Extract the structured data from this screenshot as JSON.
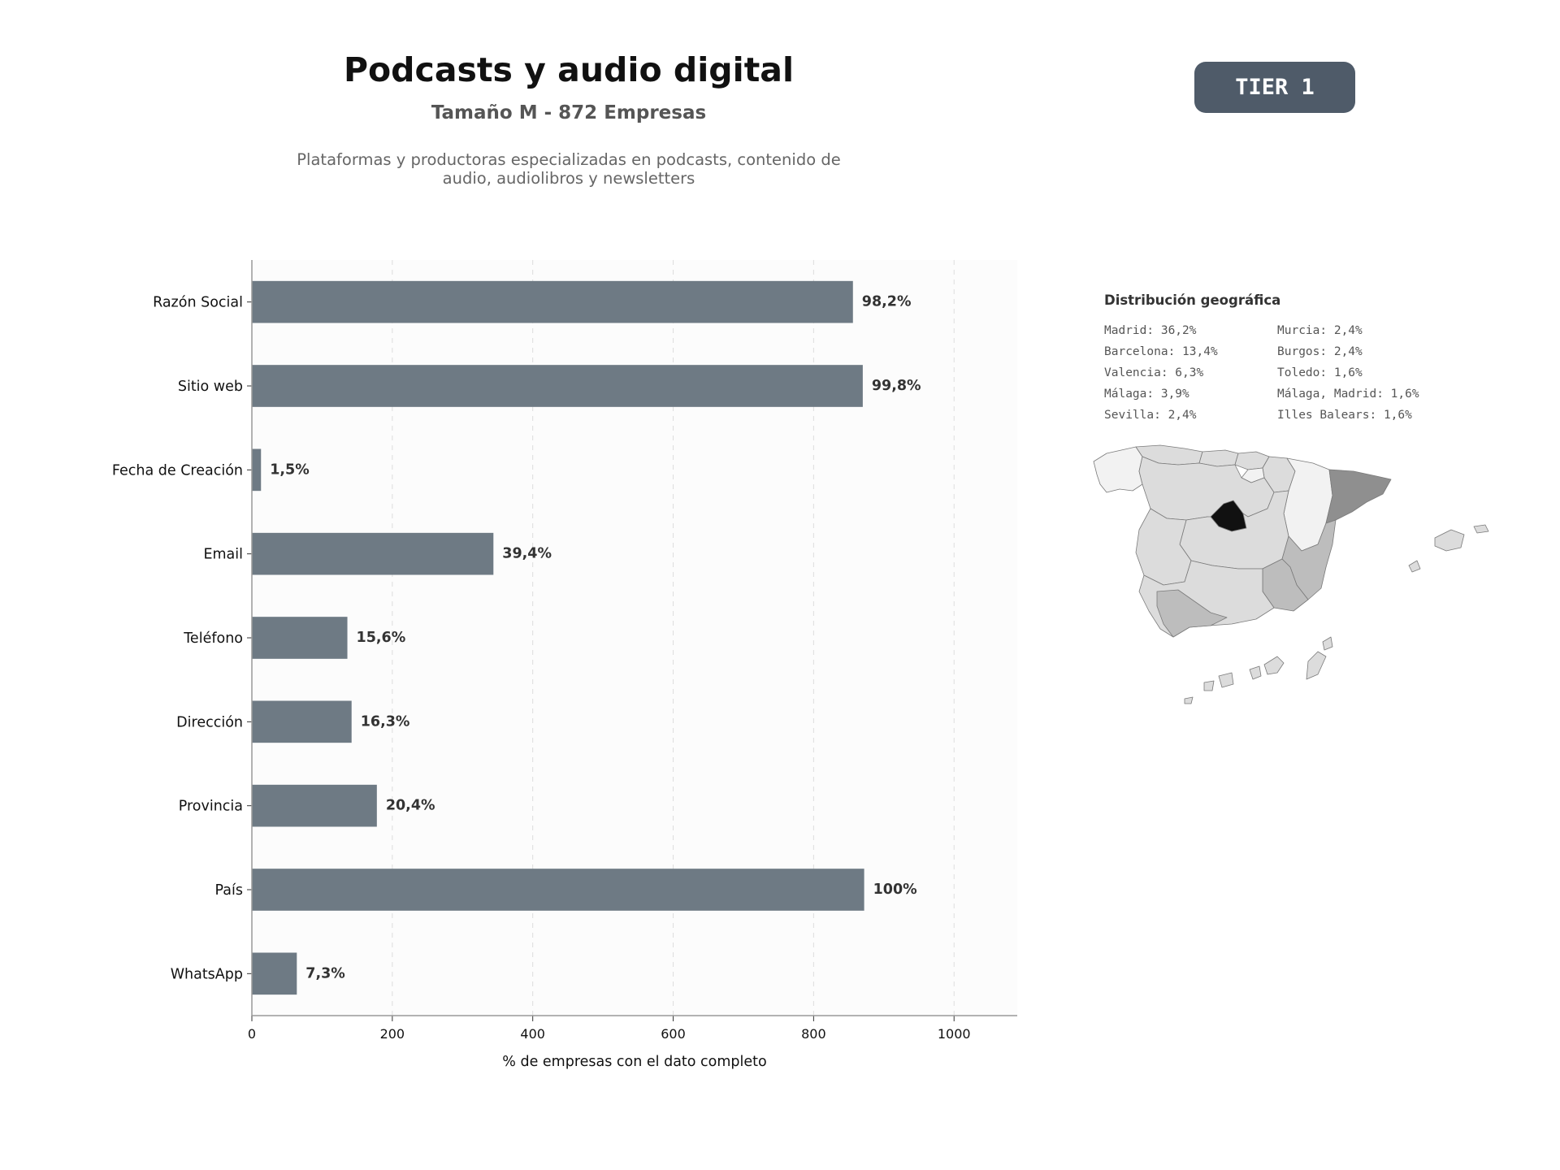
{
  "header": {
    "title": "Podcasts y audio digital",
    "subtitle": "Tamaño M - 872 Empresas",
    "description_line1": "Plataformas y productoras especializadas en podcasts, contenido de",
    "description_line2": "audio, audiolibros y newsletters",
    "tier": "TIER 1"
  },
  "chart_data": {
    "type": "bar",
    "orientation": "horizontal",
    "categories": [
      "Razón Social",
      "Sitio web",
      "Fecha de Creación",
      "Email",
      "Teléfono",
      "Dirección",
      "Provincia",
      "País",
      "WhatsApp"
    ],
    "values": [
      856,
      870,
      13,
      344,
      136,
      142,
      178,
      872,
      64
    ],
    "data_labels": [
      "98,2%",
      "99,8%",
      "1,5%",
      "39,4%",
      "15,6%",
      "16,3%",
      "20,4%",
      "100%",
      "7,3%"
    ],
    "xlabel": "% de empresas con el dato completo",
    "xticks": [
      0,
      200,
      400,
      600,
      800,
      1000
    ],
    "xlim": [
      0,
      1090
    ],
    "grid": "vertical dashed",
    "bar_color": "#6e7a84",
    "background": "#fcfcfc"
  },
  "geo": {
    "title": "Distribución geográfica",
    "items": [
      "Madrid: 36,2%",
      "Murcia: 2,4%",
      "Barcelona: 13,4%",
      "Burgos: 2,4%",
      "Valencia: 6,3%",
      "Toledo: 1,6%",
      "Málaga: 3,9%",
      "Málaga, Madrid: 1,6%",
      "Sevilla: 2,4%",
      "Illes Balears: 1,6%"
    ],
    "map_colors": {
      "max": "#111111",
      "high": "#8f8f8f",
      "mid": "#bdbdbd",
      "low": "#dcdcdc",
      "min": "#f2f2f2"
    }
  }
}
